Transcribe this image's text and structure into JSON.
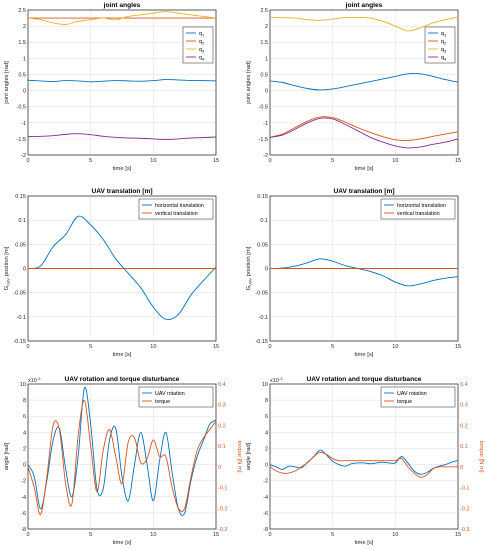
{
  "colors": {
    "blue": "#0072BD",
    "orange": "#D95319",
    "yellow": "#EDB120",
    "purple": "#7E2F8E",
    "red": "#A2142F"
  },
  "chart_data": [
    {
      "type": "line",
      "title": "joint angles",
      "xlabel": "time [s]",
      "ylabel": "joint angles [rad]",
      "xlim": [
        0,
        15
      ],
      "ylim": [
        -2,
        2.5
      ],
      "xticks": [
        "0",
        "5",
        "10",
        "15"
      ],
      "yticks": [
        "-2",
        "-1.5",
        "-1",
        "-0.5",
        "0",
        "0.5",
        "1",
        "1.5",
        "2",
        "2.5"
      ],
      "grid": true,
      "legend": "top-right",
      "legend_labels": [
        "q1",
        "q2",
        "q3",
        "q4"
      ],
      "series": [
        {
          "name": "q1",
          "color": "blue",
          "x": [
            0,
            1,
            2,
            3,
            4,
            5,
            6,
            7,
            8,
            9,
            10,
            11,
            12,
            13,
            14,
            15
          ],
          "values": [
            0.32,
            0.3,
            0.28,
            0.31,
            0.3,
            0.27,
            0.29,
            0.31,
            0.3,
            0.29,
            0.31,
            0.34,
            0.33,
            0.31,
            0.31,
            0.3
          ]
        },
        {
          "name": "q2",
          "color": "orange",
          "x": [
            0,
            15
          ],
          "values": [
            2.25,
            2.25
          ]
        },
        {
          "name": "q3",
          "color": "yellow",
          "x": [
            0,
            1,
            2,
            3,
            4,
            5,
            6,
            7,
            8,
            9,
            10,
            11,
            12,
            13,
            14,
            15
          ],
          "values": [
            2.25,
            2.2,
            2.1,
            2.05,
            2.15,
            2.2,
            2.25,
            2.2,
            2.3,
            2.35,
            2.4,
            2.45,
            2.4,
            2.35,
            2.3,
            2.25
          ]
        },
        {
          "name": "q4",
          "color": "purple",
          "x": [
            0,
            1,
            2,
            3,
            4,
            5,
            6,
            7,
            8,
            9,
            10,
            11,
            12,
            13,
            14,
            15
          ],
          "values": [
            -1.43,
            -1.42,
            -1.4,
            -1.36,
            -1.34,
            -1.37,
            -1.42,
            -1.45,
            -1.47,
            -1.48,
            -1.5,
            -1.52,
            -1.5,
            -1.47,
            -1.46,
            -1.44
          ]
        }
      ]
    },
    {
      "type": "line",
      "title": "joint angles",
      "xlabel": "time [s]",
      "ylabel": "joint angles [rad]",
      "xlim": [
        0,
        15
      ],
      "ylim": [
        -2,
        2.5
      ],
      "xticks": [
        "0",
        "5",
        "10",
        "15"
      ],
      "yticks": [
        "-2",
        "-1.5",
        "-1",
        "-0.5",
        "0",
        "0.5",
        "1",
        "1.5",
        "2",
        "2.5"
      ],
      "grid": true,
      "legend": "top-right",
      "legend_labels": [
        "q1",
        "q2",
        "q3",
        "q4"
      ],
      "series": [
        {
          "name": "q1",
          "color": "blue",
          "x": [
            0,
            1,
            2,
            3,
            4,
            5,
            6,
            7,
            8,
            9,
            10,
            11,
            12,
            13,
            14,
            15
          ],
          "values": [
            0.3,
            0.25,
            0.15,
            0.06,
            0.02,
            0.05,
            0.12,
            0.2,
            0.28,
            0.36,
            0.44,
            0.52,
            0.52,
            0.44,
            0.34,
            0.26
          ]
        },
        {
          "name": "q2",
          "color": "orange",
          "x": [
            0,
            1,
            2,
            3,
            4,
            5,
            6,
            7,
            8,
            9,
            10,
            11,
            12,
            13,
            14,
            15
          ],
          "values": [
            -1.45,
            -1.35,
            -1.15,
            -0.95,
            -0.82,
            -0.84,
            -0.98,
            -1.15,
            -1.3,
            -1.43,
            -1.53,
            -1.55,
            -1.5,
            -1.42,
            -1.35,
            -1.28
          ]
        },
        {
          "name": "q3",
          "color": "yellow",
          "x": [
            0,
            1,
            2,
            3,
            4,
            5,
            6,
            7,
            8,
            9,
            10,
            11,
            12,
            13,
            14,
            15
          ],
          "values": [
            2.28,
            2.26,
            2.25,
            2.2,
            2.18,
            2.22,
            2.26,
            2.27,
            2.25,
            2.15,
            2.0,
            1.85,
            1.95,
            2.1,
            2.2,
            2.28
          ]
        },
        {
          "name": "q4",
          "color": "purple",
          "x": [
            0,
            1,
            2,
            3,
            4,
            5,
            6,
            7,
            8,
            9,
            10,
            11,
            12,
            13,
            14,
            15
          ],
          "values": [
            -1.45,
            -1.38,
            -1.2,
            -1.0,
            -0.86,
            -0.88,
            -1.05,
            -1.25,
            -1.45,
            -1.6,
            -1.72,
            -1.78,
            -1.75,
            -1.67,
            -1.6,
            -1.5
          ]
        }
      ]
    },
    {
      "type": "line",
      "title": "UAV translation [m]",
      "xlabel": "time [s]",
      "ylabel": "GUAV position [m]",
      "xlim": [
        0,
        15
      ],
      "ylim": [
        -0.15,
        0.15
      ],
      "xticks": [
        "0",
        "5",
        "10",
        "15"
      ],
      "yticks": [
        "-0.15",
        "-0.1",
        "-0.05",
        "0",
        "0.05",
        "0.1",
        "0.15"
      ],
      "grid": true,
      "legend": "top-right",
      "legend_labels": [
        "horizontal translation",
        "vertical translation"
      ],
      "series": [
        {
          "name": "horizontal translation",
          "color": "blue",
          "x": [
            0,
            1,
            2,
            3,
            4,
            5,
            6,
            7,
            8,
            9,
            10,
            11,
            12,
            13,
            14,
            15
          ],
          "values": [
            0,
            0.005,
            0.045,
            0.07,
            0.108,
            0.09,
            0.06,
            0.02,
            -0.01,
            -0.04,
            -0.08,
            -0.105,
            -0.095,
            -0.055,
            -0.025,
            0.003
          ]
        },
        {
          "name": "vertical translation",
          "color": "orange",
          "x": [
            0,
            15
          ],
          "values": [
            0,
            0
          ]
        }
      ]
    },
    {
      "type": "line",
      "title": "UAV translation [m]",
      "xlabel": "time [s]",
      "ylabel": "GUAV position [m]",
      "xlim": [
        0,
        15
      ],
      "ylim": [
        -0.15,
        0.15
      ],
      "xticks": [
        "0",
        "5",
        "10",
        "15"
      ],
      "yticks": [
        "-0.15",
        "-0.1",
        "-0.05",
        "0",
        "0.05",
        "0.1",
        "0.15"
      ],
      "grid": true,
      "legend": "top-right",
      "legend_labels": [
        "horizontal translation",
        "vertical translation"
      ],
      "series": [
        {
          "name": "horizontal translation",
          "color": "blue",
          "x": [
            0,
            1,
            2,
            3,
            4,
            5,
            6,
            7,
            8,
            9,
            10,
            11,
            12,
            13,
            14,
            15
          ],
          "values": [
            0,
            0.001,
            0.005,
            0.012,
            0.02,
            0.015,
            0.006,
            0.0,
            -0.006,
            -0.015,
            -0.028,
            -0.036,
            -0.032,
            -0.025,
            -0.02,
            -0.017
          ]
        },
        {
          "name": "vertical translation",
          "color": "orange",
          "x": [
            0,
            15
          ],
          "values": [
            0,
            0
          ]
        }
      ]
    },
    {
      "type": "line",
      "title": "UAV rotation and torque disturbance",
      "xlabel": "time [s]",
      "ylabel": "angle [rad]",
      "y2label": "torque [N m]",
      "y_exponent": "x10-3",
      "xlim": [
        0,
        15
      ],
      "ylim": [
        -8,
        10
      ],
      "y2lim": [
        -0.3,
        0.4
      ],
      "xticks": [
        "0",
        "5",
        "10",
        "15"
      ],
      "yticks": [
        "-8",
        "-6",
        "-4",
        "-2",
        "0",
        "2",
        "4",
        "6",
        "8",
        "10"
      ],
      "y2ticks": [
        "-0.3",
        "-0.2",
        "-0.1",
        "0",
        "0.1",
        "0.2",
        "0.3",
        "0.4"
      ],
      "grid": true,
      "legend": "top-right",
      "legend_labels": [
        "UAV rotation",
        "torque"
      ],
      "series": [
        {
          "name": "UAV rotation",
          "axis": "left",
          "color": "blue",
          "x": [
            0,
            0.5,
            1,
            1.5,
            2,
            2.5,
            3,
            3.5,
            4,
            4.5,
            5,
            5.5,
            6,
            6.5,
            7,
            7.5,
            8,
            8.5,
            9,
            9.5,
            10,
            10.5,
            11,
            11.5,
            12,
            12.5,
            13,
            13.5,
            14,
            14.5,
            15
          ],
          "values": [
            0,
            -1.5,
            -5.5,
            -2,
            3,
            4.5,
            -0.5,
            -4,
            1,
            9.5,
            5,
            -3,
            -3,
            3,
            4.5,
            -1.5,
            -4.5,
            0,
            4,
            0,
            -4.5,
            0.5,
            4,
            -1,
            -5.5,
            -6,
            -2,
            1,
            3,
            5,
            5.5
          ]
        },
        {
          "name": "torque",
          "axis": "right",
          "color": "orange",
          "x": [
            0,
            0.5,
            1,
            1.5,
            2,
            2.5,
            3,
            3.5,
            4,
            4.5,
            5,
            5.5,
            6,
            6.5,
            7,
            7.5,
            8,
            8.5,
            9,
            9.5,
            10,
            10.5,
            11,
            11.5,
            12,
            12.5,
            13,
            13.5,
            14,
            14.5,
            15
          ],
          "values": [
            0,
            -0.1,
            -0.23,
            -0.05,
            0.2,
            0.18,
            -0.08,
            -0.18,
            0.15,
            0.32,
            0.1,
            -0.12,
            0.08,
            0.18,
            0.05,
            -0.08,
            0.12,
            0.14,
            0.02,
            0.04,
            0.13,
            0.05,
            0.05,
            -0.1,
            -0.2,
            -0.2,
            -0.05,
            0.08,
            0.14,
            0.18,
            0.22
          ]
        }
      ]
    },
    {
      "type": "line",
      "title": "UAV rotation and torque disturbance",
      "xlabel": "time [s]",
      "ylabel": "angle [rad]",
      "y2label": "torque [N m]",
      "y_exponent": "x10-3",
      "xlim": [
        0,
        15
      ],
      "ylim": [
        -8,
        10
      ],
      "y2lim": [
        -0.3,
        0.4
      ],
      "xticks": [
        "0",
        "5",
        "10",
        "15"
      ],
      "yticks": [
        "-8",
        "-6",
        "-4",
        "-2",
        "0",
        "2",
        "4",
        "6",
        "8",
        "10"
      ],
      "y2ticks": [
        "-0.3",
        "-0.2",
        "-0.1",
        "0",
        "0.1",
        "0.2",
        "0.3",
        "0.4"
      ],
      "grid": true,
      "legend": "top-right",
      "legend_labels": [
        "UAV rotation",
        "torque"
      ],
      "series": [
        {
          "name": "UAV rotation",
          "axis": "left",
          "color": "blue",
          "x": [
            0,
            0.5,
            1,
            1.5,
            2,
            2.5,
            3,
            3.5,
            4,
            4.5,
            5,
            5.5,
            6,
            6.5,
            7,
            7.5,
            8,
            8.5,
            9,
            9.5,
            10,
            10.5,
            11,
            11.5,
            12,
            12.5,
            13,
            13.5,
            14,
            14.5,
            15
          ],
          "values": [
            0,
            -0.3,
            -0.6,
            -0.2,
            -0.3,
            -0.4,
            0.3,
            1.0,
            1.8,
            1.2,
            0.4,
            0.0,
            -0.2,
            0.1,
            0.2,
            0.2,
            0.1,
            0.2,
            0.3,
            0.2,
            0.2,
            1.0,
            0.2,
            -0.8,
            -1.2,
            -1.0,
            -0.5,
            -0.2,
            0.0,
            0.3,
            0.5
          ]
        },
        {
          "name": "torque",
          "axis": "right",
          "color": "orange",
          "x": [
            0,
            0.5,
            1,
            1.5,
            2,
            2.5,
            3,
            3.5,
            4,
            4.5,
            5,
            5.5,
            6,
            6.5,
            7,
            7.5,
            8,
            8.5,
            9,
            9.5,
            10,
            10.5,
            11,
            11.5,
            12,
            12.5,
            13,
            13.5,
            14,
            14.5,
            15
          ],
          "values": [
            0,
            -0.02,
            -0.03,
            -0.03,
            -0.02,
            0.0,
            0.02,
            0.05,
            0.07,
            0.06,
            0.04,
            0.03,
            0.03,
            0.03,
            0.03,
            0.03,
            0.03,
            0.03,
            0.03,
            0.03,
            0.03,
            0.04,
            0.0,
            -0.03,
            -0.05,
            -0.04,
            -0.01,
            0.0,
            0.0,
            0.0,
            0.0
          ]
        }
      ]
    }
  ]
}
